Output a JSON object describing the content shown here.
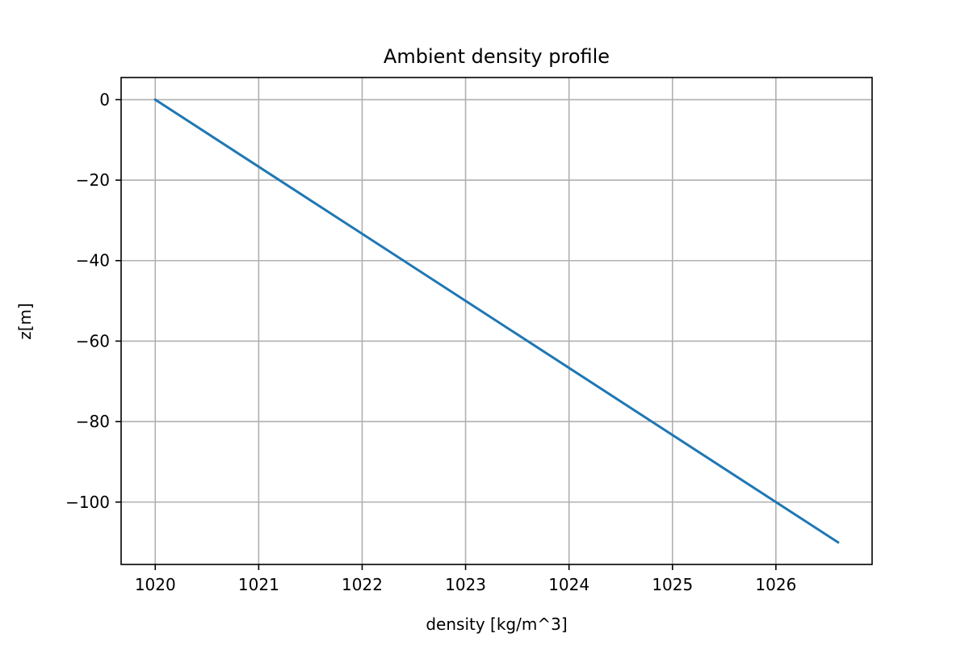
{
  "chart_data": {
    "type": "line",
    "title": "Ambient density profile",
    "xlabel": "density [kg/m^3]",
    "ylabel": "z[m]",
    "xlim": [
      1019.67,
      1026.93
    ],
    "ylim": [
      -115.5,
      5.5
    ],
    "xticks": [
      1020,
      1021,
      1022,
      1023,
      1024,
      1025,
      1026
    ],
    "xtick_labels": [
      "1020",
      "1021",
      "1022",
      "1023",
      "1024",
      "1025",
      "1026"
    ],
    "yticks": [
      0,
      -20,
      -40,
      -60,
      -80,
      -100
    ],
    "ytick_labels": [
      "0",
      "−20",
      "−40",
      "−60",
      "−80",
      "−100"
    ],
    "grid": true,
    "series": [
      {
        "color": "#1f77b4",
        "x": [
          1020,
          1026.6
        ],
        "y": [
          0,
          -110
        ]
      }
    ]
  }
}
